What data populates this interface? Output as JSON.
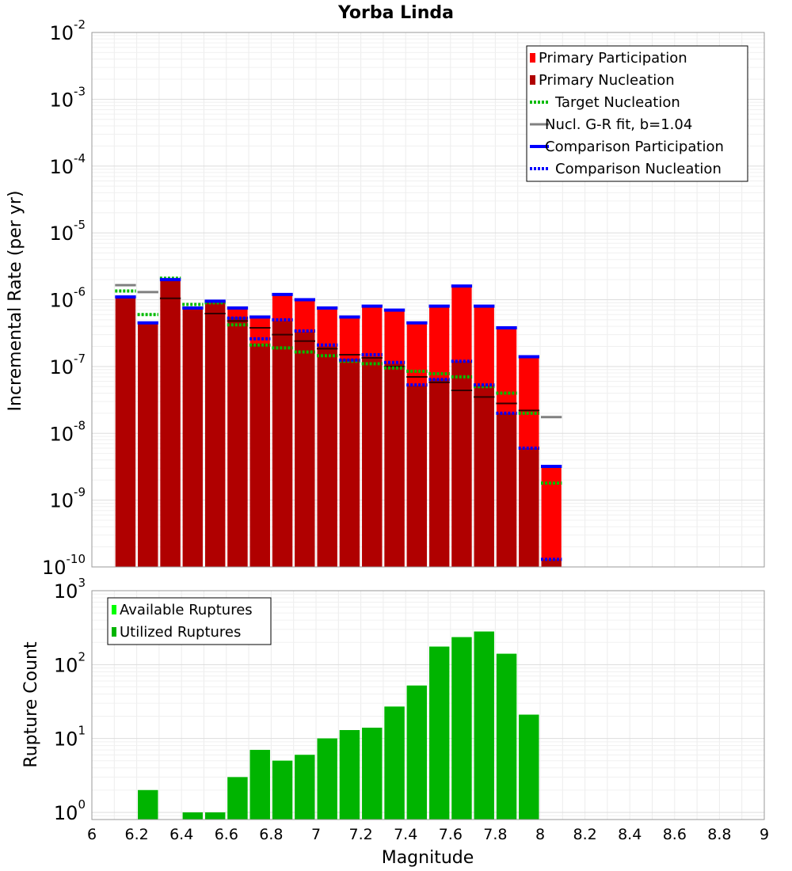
{
  "chart_data": [
    {
      "type": "bar",
      "title": "Yorba Linda",
      "xlabel": "Magnitude",
      "ylabel": "Incremental Rate (per yr)",
      "yscale": "log",
      "xlim": [
        6,
        9
      ],
      "ylim": [
        1e-10,
        0.01
      ],
      "grid": true,
      "legend_position": "top-right",
      "bin_width": 0.1,
      "x": [
        6.15,
        6.25,
        6.35,
        6.45,
        6.55,
        6.65,
        6.75,
        6.85,
        6.95,
        7.05,
        7.15,
        7.25,
        7.35,
        7.45,
        7.55,
        7.65,
        7.75,
        7.85,
        7.95,
        8.05
      ],
      "series": [
        {
          "name": "Primary Participation",
          "color": "#ff0000",
          "style": "bar",
          "values": [
            1.1e-06,
            4.5e-07,
            2e-06,
            7.5e-07,
            9.5e-07,
            7.5e-07,
            5.5e-07,
            1.2e-06,
            1e-06,
            7.5e-07,
            5.5e-07,
            8e-07,
            7e-07,
            4.5e-07,
            8e-07,
            1.6e-06,
            8e-07,
            3.8e-07,
            1.4e-07,
            3.2e-09
          ]
        },
        {
          "name": "Primary Nucleation",
          "color": "#b00000",
          "style": "bar",
          "values": [
            1.1e-06,
            4.5e-07,
            2e-06,
            7.5e-07,
            9.5e-07,
            5.5e-07,
            2.2e-07,
            4.8e-07,
            3.3e-07,
            2e-07,
            1.3e-07,
            1.4e-07,
            1.1e-07,
            5.2e-08,
            6.5e-08,
            1.2e-07,
            5.2e-08,
            2e-08,
            6e-09,
            1.3e-10
          ]
        },
        {
          "name": "Target Nucleation",
          "color": "#00bb00",
          "style": "dotted",
          "values": [
            1.35e-06,
            6e-07,
            2.1e-06,
            8.5e-07,
            9e-07,
            4.2e-07,
            2.1e-07,
            1.9e-07,
            1.65e-07,
            1.45e-07,
            1.2e-07,
            1.1e-07,
            9.5e-08,
            8.5e-08,
            7.8e-08,
            7e-08,
            5e-08,
            4e-08,
            2e-08,
            1.8e-09
          ]
        },
        {
          "name": "Nucl. G-R fit, b=1.04",
          "color": "#808080",
          "style": "solid",
          "values": [
            1.65e-06,
            1.3e-06,
            null,
            null,
            null,
            null,
            null,
            null,
            null,
            null,
            null,
            null,
            null,
            null,
            null,
            null,
            null,
            null,
            null,
            1.75e-08
          ]
        },
        {
          "name": "Comparison Participation",
          "color": "#0000ff",
          "style": "solid",
          "values": [
            1.1e-06,
            4.5e-07,
            2e-06,
            7.5e-07,
            9.5e-07,
            7.5e-07,
            5.5e-07,
            1.2e-06,
            1e-06,
            7.5e-07,
            5.5e-07,
            8e-07,
            7e-07,
            4.5e-07,
            8e-07,
            1.6e-06,
            8e-07,
            3.8e-07,
            1.4e-07,
            3.2e-09
          ]
        },
        {
          "name": "Comparison Nucleation",
          "color": "#0000ff",
          "style": "dotted",
          "values": [
            null,
            null,
            null,
            null,
            null,
            5.3e-07,
            2.6e-07,
            5e-07,
            3.4e-07,
            2.1e-07,
            1.25e-07,
            1.5e-07,
            1.15e-07,
            5.3e-08,
            6.4e-08,
            1.2e-07,
            5.3e-08,
            2e-08,
            6e-09,
            1.3e-10
          ]
        }
      ],
      "extra_markers": [
        {
          "color": "#330000",
          "values": [
            null,
            null,
            1.05e-06,
            null,
            6.2e-07,
            4.8e-07,
            3.8e-07,
            3e-07,
            2.4e-07,
            1.85e-07,
            1.5e-07,
            1.35e-07,
            1e-07,
            7e-08,
            5.8e-08,
            4.4e-08,
            3.5e-08,
            2.8e-08,
            2.2e-08,
            null
          ]
        }
      ],
      "ytick_exponents": [
        -10,
        -9,
        -8,
        -7,
        -6,
        -5,
        -4,
        -3,
        -2
      ]
    },
    {
      "type": "bar",
      "xlabel": "Magnitude",
      "ylabel": "Rupture Count",
      "yscale": "log",
      "xlim": [
        6,
        9
      ],
      "ylim": [
        0.8,
        1000
      ],
      "grid": true,
      "legend_position": "top-left",
      "bin_width": 0.1,
      "x": [
        6.25,
        6.45,
        6.55,
        6.65,
        6.75,
        6.85,
        6.95,
        7.05,
        7.15,
        7.25,
        7.35,
        7.45,
        7.55,
        7.65,
        7.75,
        7.85,
        7.95
      ],
      "series": [
        {
          "name": "Available Ruptures",
          "color": "#00ff00",
          "values": [
            2,
            1,
            1,
            3,
            7,
            5,
            6,
            10,
            13,
            14,
            27,
            52,
            175,
            235,
            280,
            140,
            21
          ]
        },
        {
          "name": "Utilized Ruptures",
          "color": "#00b400",
          "values": [
            2,
            1,
            1,
            3,
            7,
            5,
            6,
            10,
            13,
            14,
            27,
            52,
            175,
            235,
            280,
            140,
            21
          ]
        }
      ],
      "ytick_exponents": [
        0,
        1,
        2,
        3
      ],
      "xticks": [
        "6",
        "6.2",
        "6.4",
        "6.6",
        "6.8",
        "7",
        "7.2",
        "7.4",
        "7.6",
        "7.8",
        "8",
        "8.2",
        "8.4",
        "8.6",
        "8.8",
        "9"
      ]
    }
  ]
}
